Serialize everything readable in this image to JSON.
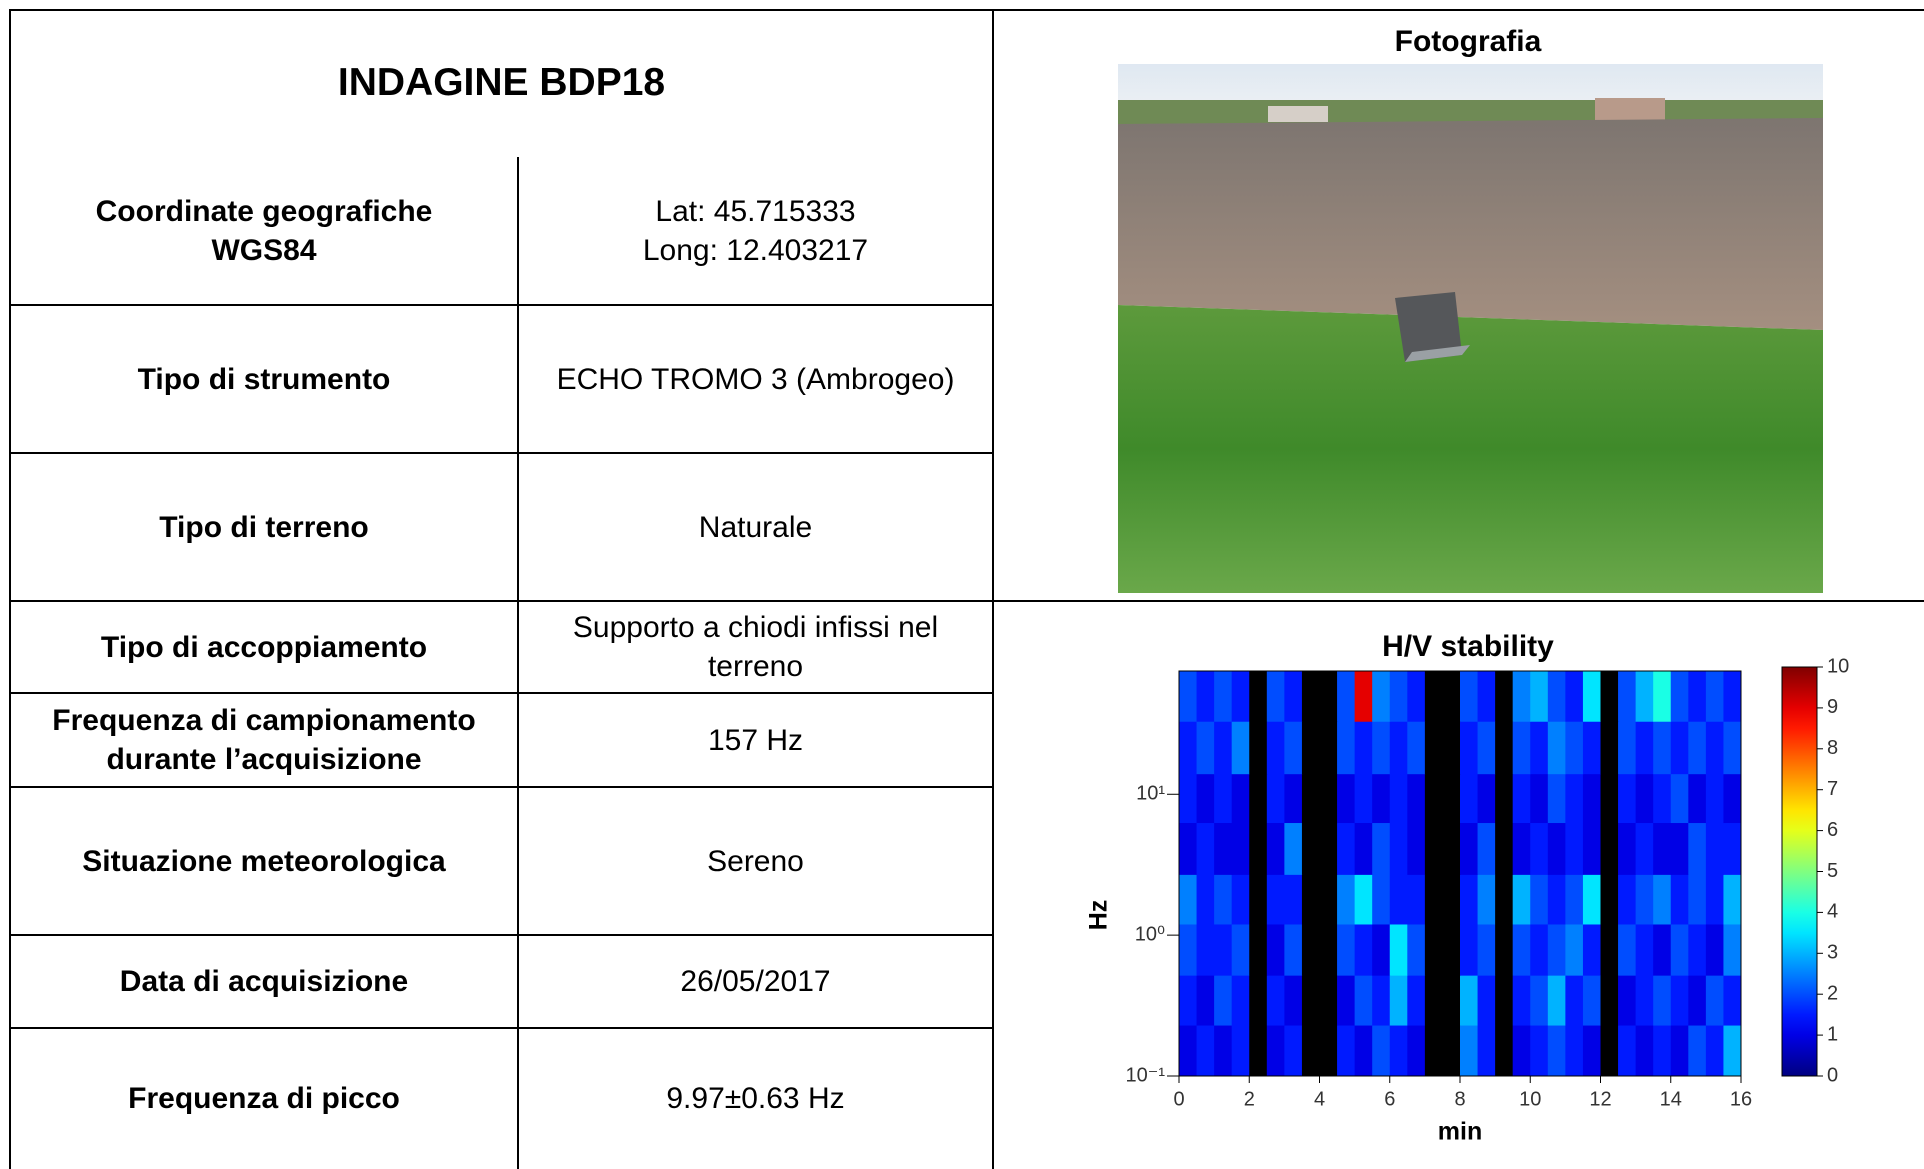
{
  "table": {
    "title": "INDAGINE BDP18",
    "rows": [
      [
        "Coordinate geografiche\nWGS84",
        "Lat: 45.715333\nLong: 12.403217"
      ],
      [
        "Tipo di strumento",
        "ECHO TROMO 3 (Ambrogeo)"
      ],
      [
        "Tipo di terreno",
        "Naturale"
      ],
      [
        "Tipo di accoppiamento",
        "Supporto a chiodi infissi nel terreno"
      ],
      [
        "Frequenza di campionamento durante l’acquisizione",
        "157 Hz"
      ],
      [
        "Situazione meteorologica",
        "Sereno"
      ],
      [
        "Data di acquisizione",
        "26/05/2017"
      ],
      [
        "Frequenza di picco",
        "9.97±0.63 Hz"
      ]
    ]
  },
  "photo": {
    "title": "Fotografia"
  },
  "chart_data": {
    "type": "heatmap",
    "title": "H/V stability",
    "x_label": "min",
    "y_label": "Hz",
    "log_y": true,
    "xlim": [
      0,
      16
    ],
    "xticks": [
      0,
      2,
      4,
      6,
      8,
      10,
      12,
      14,
      16
    ],
    "ylim": [
      0.1,
      75
    ],
    "yticks": [
      {
        "value": 0.1,
        "label": "10⁻¹"
      },
      {
        "value": 1,
        "label": "10⁰"
      },
      {
        "value": 10,
        "label": "10¹"
      }
    ],
    "clim": [
      0,
      10
    ],
    "cticks": [
      0,
      1,
      2,
      3,
      4,
      5,
      6,
      7,
      8,
      9,
      10
    ],
    "bins_x": [
      0,
      0.5,
      1,
      1.5,
      2,
      2.5,
      3,
      3.5,
      4,
      4.5,
      5,
      5.5,
      6,
      6.5,
      7,
      7.5,
      8,
      8.5,
      9,
      9.5,
      10,
      10.5,
      11,
      11.5,
      12,
      12.5,
      13,
      13.5,
      14,
      14.5,
      15,
      15.5,
      16
    ],
    "bins_y": [
      0.1,
      0.23,
      0.52,
      1.2,
      2.7,
      6.3,
      14,
      33,
      75
    ],
    "z": [
      [
        1,
        1.5,
        1,
        1.5,
        null,
        1,
        1.5,
        null,
        null,
        1.5,
        1,
        2,
        1.5,
        1,
        null,
        null,
        2.5,
        1.5,
        null,
        1,
        1.5,
        2,
        1.5,
        1,
        null,
        1.5,
        1,
        1.5,
        1,
        2,
        1.5,
        3
      ],
      [
        1.5,
        1,
        2,
        1.5,
        null,
        1.5,
        1,
        null,
        null,
        1,
        2,
        1.5,
        3,
        1.5,
        null,
        null,
        3,
        1.5,
        null,
        1.5,
        2,
        3,
        1.5,
        2,
        null,
        1,
        1.5,
        2,
        1.5,
        1,
        2,
        1.5
      ],
      [
        2,
        1.5,
        1.5,
        2,
        null,
        1,
        2,
        null,
        null,
        2,
        1.5,
        1,
        3.5,
        2,
        null,
        null,
        1.5,
        2,
        null,
        2,
        1.5,
        2,
        2.5,
        1.5,
        null,
        2,
        1.5,
        1,
        2,
        1.5,
        1,
        2.5
      ],
      [
        2.5,
        1.5,
        2,
        1.5,
        null,
        1.5,
        1.5,
        null,
        null,
        2.5,
        3.5,
        2,
        1.5,
        1.5,
        null,
        null,
        1.5,
        2.5,
        null,
        3,
        2,
        1.5,
        2,
        3.5,
        null,
        1.5,
        2,
        2.5,
        1.5,
        2,
        1.5,
        3
      ],
      [
        1,
        1.5,
        1,
        1,
        null,
        1,
        2.5,
        null,
        null,
        1.5,
        1,
        2,
        1.5,
        1,
        null,
        null,
        1,
        2,
        null,
        1,
        1.5,
        1,
        1.5,
        1,
        null,
        1,
        1.5,
        1,
        1,
        2,
        1.5,
        1.5
      ],
      [
        1.5,
        1,
        1.5,
        1,
        null,
        1.5,
        1,
        null,
        null,
        1,
        1.5,
        1,
        1.5,
        1,
        null,
        null,
        1.5,
        1,
        null,
        1.5,
        1,
        2,
        1.5,
        1,
        null,
        1.5,
        1,
        1.5,
        2,
        1,
        1.5,
        1
      ],
      [
        1.5,
        2,
        1.5,
        2.5,
        null,
        1.5,
        2,
        null,
        null,
        2,
        1.5,
        2,
        1.5,
        2,
        null,
        null,
        1.5,
        2,
        null,
        2,
        1.5,
        2.5,
        2,
        1.5,
        null,
        2,
        1.5,
        2,
        1.5,
        2,
        1.5,
        2
      ],
      [
        2,
        1.5,
        2,
        1.5,
        null,
        2,
        1.5,
        null,
        null,
        2,
        9,
        2.5,
        2,
        1.5,
        null,
        null,
        2,
        1.5,
        null,
        2.5,
        3,
        2,
        1.5,
        3.5,
        null,
        2,
        3,
        4,
        2,
        1.5,
        2,
        1.5
      ]
    ]
  }
}
